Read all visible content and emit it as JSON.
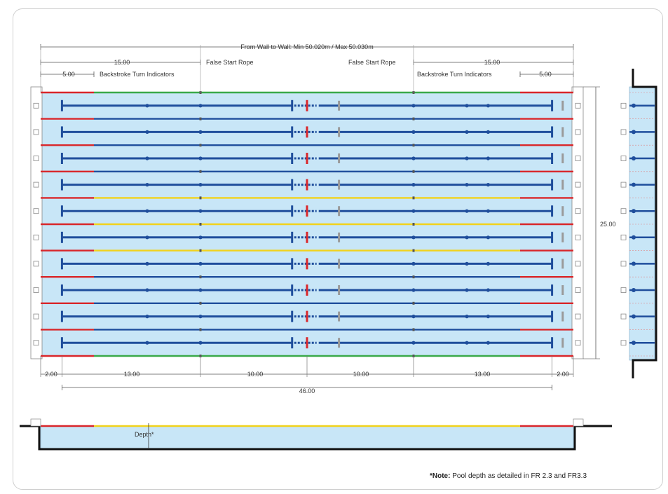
{
  "diagram": {
    "top_dimension": "From Wall to Wall: Min 50.020m / Max 50.030m",
    "dim_15_left": "15.00",
    "dim_15_right": "15.00",
    "dim_5_left": "5.00",
    "dim_5_right": "5.00",
    "backstroke_left": "Backstroke Turn Indicators",
    "backstroke_right": "Backstroke Turn Indicators",
    "false_start_left": "False Start Rope",
    "false_start_right": "False Start Rope",
    "width_dim": "25.00",
    "bottom_dims": [
      "2.00",
      "13.00",
      "10.00",
      "10.00",
      "13.00",
      "2.00"
    ],
    "total_dim": "46.00",
    "depth_label": "Depth*",
    "note_bold": "*Note:",
    "note_text": " Pool depth as detailed in FR 2.3 and FR3.3",
    "lanes": 10
  },
  "colors": {
    "water": "#c8e6f7",
    "lane_rope_blue": "#1f4e9c",
    "red": "#d9262a",
    "yellow": "#f1d21c",
    "green": "#3aa94a",
    "wall": "#111111"
  }
}
